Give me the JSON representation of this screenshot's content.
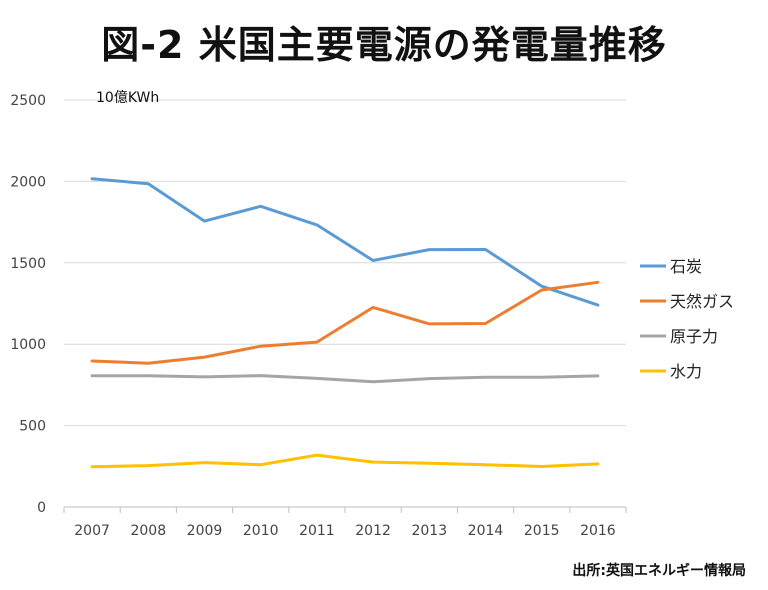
{
  "title": "図-2 米国主要電源の発電量推移",
  "source": "出所:英国エネルギー情報局",
  "chart_data": {
    "type": "line",
    "unit_label": "10億KWh",
    "categories": [
      "2007",
      "2008",
      "2009",
      "2010",
      "2011",
      "2012",
      "2013",
      "2014",
      "2015",
      "2016"
    ],
    "ylim": [
      0,
      2500
    ],
    "yticks": [
      0,
      500,
      1000,
      1500,
      2000,
      2500
    ],
    "grid": true,
    "legend_position": "right",
    "series": [
      {
        "name": "石炭",
        "color": "#5B9BD5",
        "values": [
          2016,
          1986,
          1756,
          1847,
          1733,
          1514,
          1581,
          1582,
          1356,
          1240
        ]
      },
      {
        "name": "天然ガス",
        "color": "#ED7D31",
        "values": [
          897,
          883,
          921,
          988,
          1013,
          1226,
          1125,
          1127,
          1333,
          1380
        ]
      },
      {
        "name": "原子力",
        "color": "#A5A5A5",
        "values": [
          806,
          806,
          799,
          807,
          790,
          769,
          789,
          797,
          797,
          805
        ]
      },
      {
        "name": "水力",
        "color": "#FFC000",
        "values": [
          247,
          254,
          273,
          260,
          319,
          276,
          269,
          260,
          249,
          265
        ]
      }
    ]
  }
}
